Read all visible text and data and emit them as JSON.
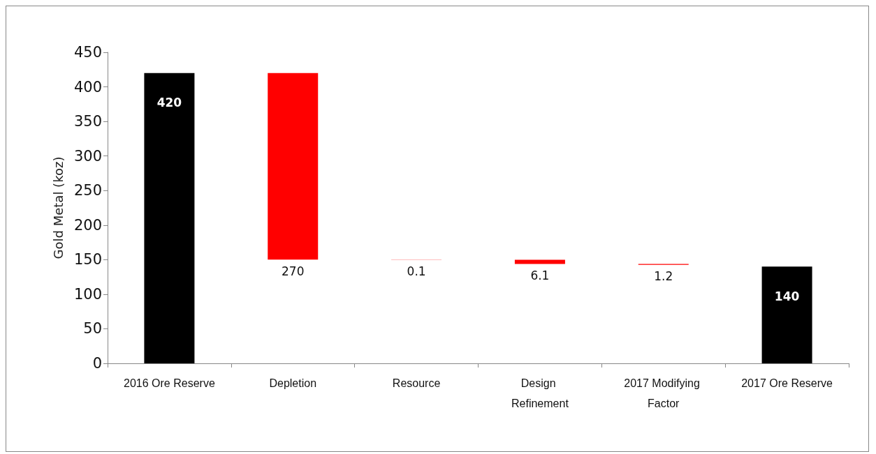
{
  "chart_data": {
    "type": "bar",
    "ylabel": "Gold Metal (koz)",
    "categories": [
      "2016 Ore Reserve",
      "Depletion",
      "Resource",
      "Design Refinement",
      "2017 Modifying Factor",
      "2017 Ore Reserve"
    ],
    "values": [
      420,
      270,
      0.1,
      6.1,
      1.2,
      140
    ],
    "base": [
      0,
      150,
      149.9,
      143.8,
      142.6,
      0
    ],
    "colors": [
      "#000000",
      "#ff0000",
      "#ff0000",
      "#ff0000",
      "#ff0000",
      "#000000"
    ],
    "ylim": [
      0,
      450
    ],
    "yticks": [
      0,
      50,
      100,
      150,
      200,
      250,
      300,
      350,
      400,
      450
    ],
    "data_labels": true,
    "grid": false
  }
}
